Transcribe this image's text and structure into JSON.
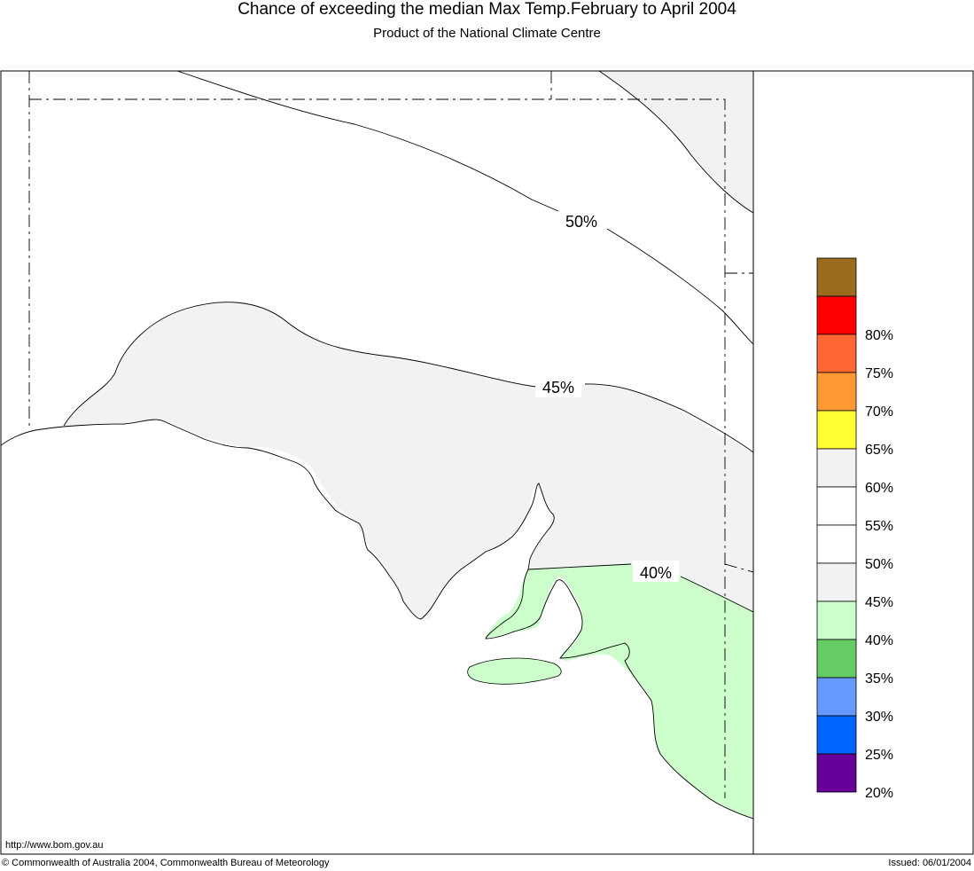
{
  "title": "Chance of exceeding the median Max Temp.February to April 2004",
  "subtitle": "Product of the National Climate Centre",
  "contour_labels": [
    "50%",
    "45%",
    "40%"
  ],
  "legend": [
    {
      "color": "#9a6b1f"
    },
    {
      "label": "80%",
      "color": "#ff0000"
    },
    {
      "label": "75%",
      "color": "#ff6633"
    },
    {
      "label": "70%",
      "color": "#ff9933"
    },
    {
      "label": "65%",
      "color": "#ffff33"
    },
    {
      "label": "60%",
      "color": "#f2f2f2"
    },
    {
      "label": "55%",
      "color": "#ffffff"
    },
    {
      "label": "50%",
      "color": "#ffffff"
    },
    {
      "label": "45%",
      "color": "#f2f2f2"
    },
    {
      "label": "40%",
      "color": "#ccffcc"
    },
    {
      "label": "35%",
      "color": "#66cc66"
    },
    {
      "label": "30%",
      "color": "#6699ff"
    },
    {
      "label": "25%",
      "color": "#0066ff"
    },
    {
      "label": "20%",
      "color": "#660099"
    }
  ],
  "footer": {
    "url": "http://www.bom.gov.au",
    "copyright": "© Commonwealth of Australia 2004, Commonwealth Bureau of Meteorology",
    "issued": "Issued: 06/01/2004"
  }
}
